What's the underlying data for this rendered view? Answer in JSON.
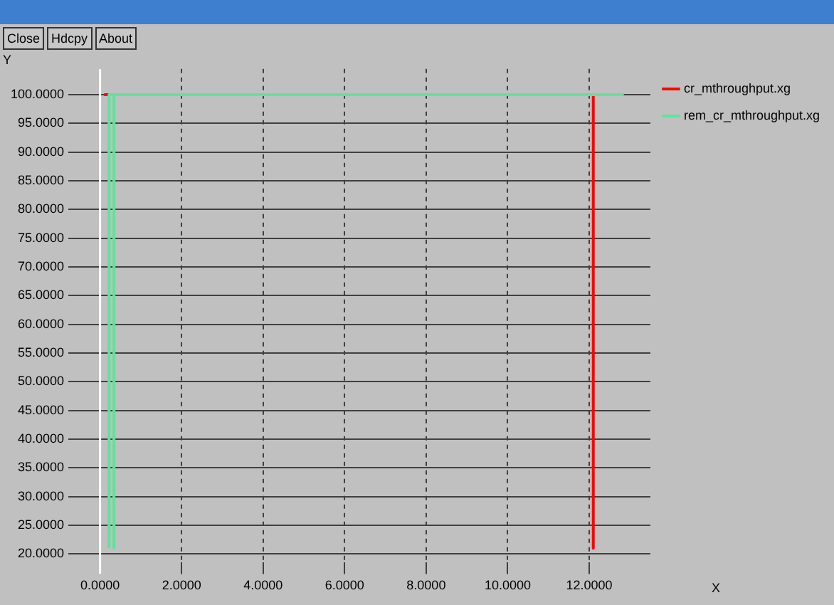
{
  "chart_data": {
    "type": "line",
    "xlabel": "X",
    "ylabel": "Y",
    "annotations": [
      "Close",
      "Hdcpy",
      "About"
    ],
    "xlim": [
      -0.5,
      13.5
    ],
    "ylim": [
      18.5,
      104.5
    ],
    "xticks": [
      {
        "value": 0,
        "label": "0.0000"
      },
      {
        "value": 2,
        "label": "2.0000"
      },
      {
        "value": 4,
        "label": "4.0000"
      },
      {
        "value": 6,
        "label": "6.0000"
      },
      {
        "value": 8,
        "label": "8.0000"
      },
      {
        "value": 10,
        "label": "10.0000"
      },
      {
        "value": 12,
        "label": "12.0000"
      }
    ],
    "yticks": [
      {
        "value": 20,
        "label": "20.0000"
      },
      {
        "value": 25,
        "label": "25.0000"
      },
      {
        "value": 30,
        "label": "30.0000"
      },
      {
        "value": 35,
        "label": "35.0000"
      },
      {
        "value": 40,
        "label": "40.0000"
      },
      {
        "value": 45,
        "label": "45.0000"
      },
      {
        "value": 50,
        "label": "50.0000"
      },
      {
        "value": 55,
        "label": "55.0000"
      },
      {
        "value": 60,
        "label": "60.0000"
      },
      {
        "value": 65,
        "label": "65.0000"
      },
      {
        "value": 70,
        "label": "70.0000"
      },
      {
        "value": 75,
        "label": "75.0000"
      },
      {
        "value": 80,
        "label": "80.0000"
      },
      {
        "value": 85,
        "label": "85.0000"
      },
      {
        "value": 90,
        "label": "90.0000"
      },
      {
        "value": 95,
        "label": "95.0000"
      },
      {
        "value": 100,
        "label": "100.0000"
      }
    ],
    "ref_lines": [
      {
        "axis": "x",
        "value": 0,
        "color": "#ffffff"
      }
    ],
    "grid": true,
    "legend": "top right",
    "marker": "none",
    "line_style": "solid",
    "series": [
      {
        "name": "cr_mthroughput.xg",
        "color": "#ff0000",
        "x": [
          0.1,
          12.1,
          12.1
        ],
        "values": [
          100,
          100,
          21
        ]
      },
      {
        "name": "rem_cr_mthroughput.xg",
        "color": "#5fe39a",
        "x": [
          0.22,
          0.22,
          0.34,
          0.34,
          0.34,
          12.85
        ],
        "values": [
          21,
          100,
          100,
          21,
          100,
          100
        ]
      }
    ]
  }
}
